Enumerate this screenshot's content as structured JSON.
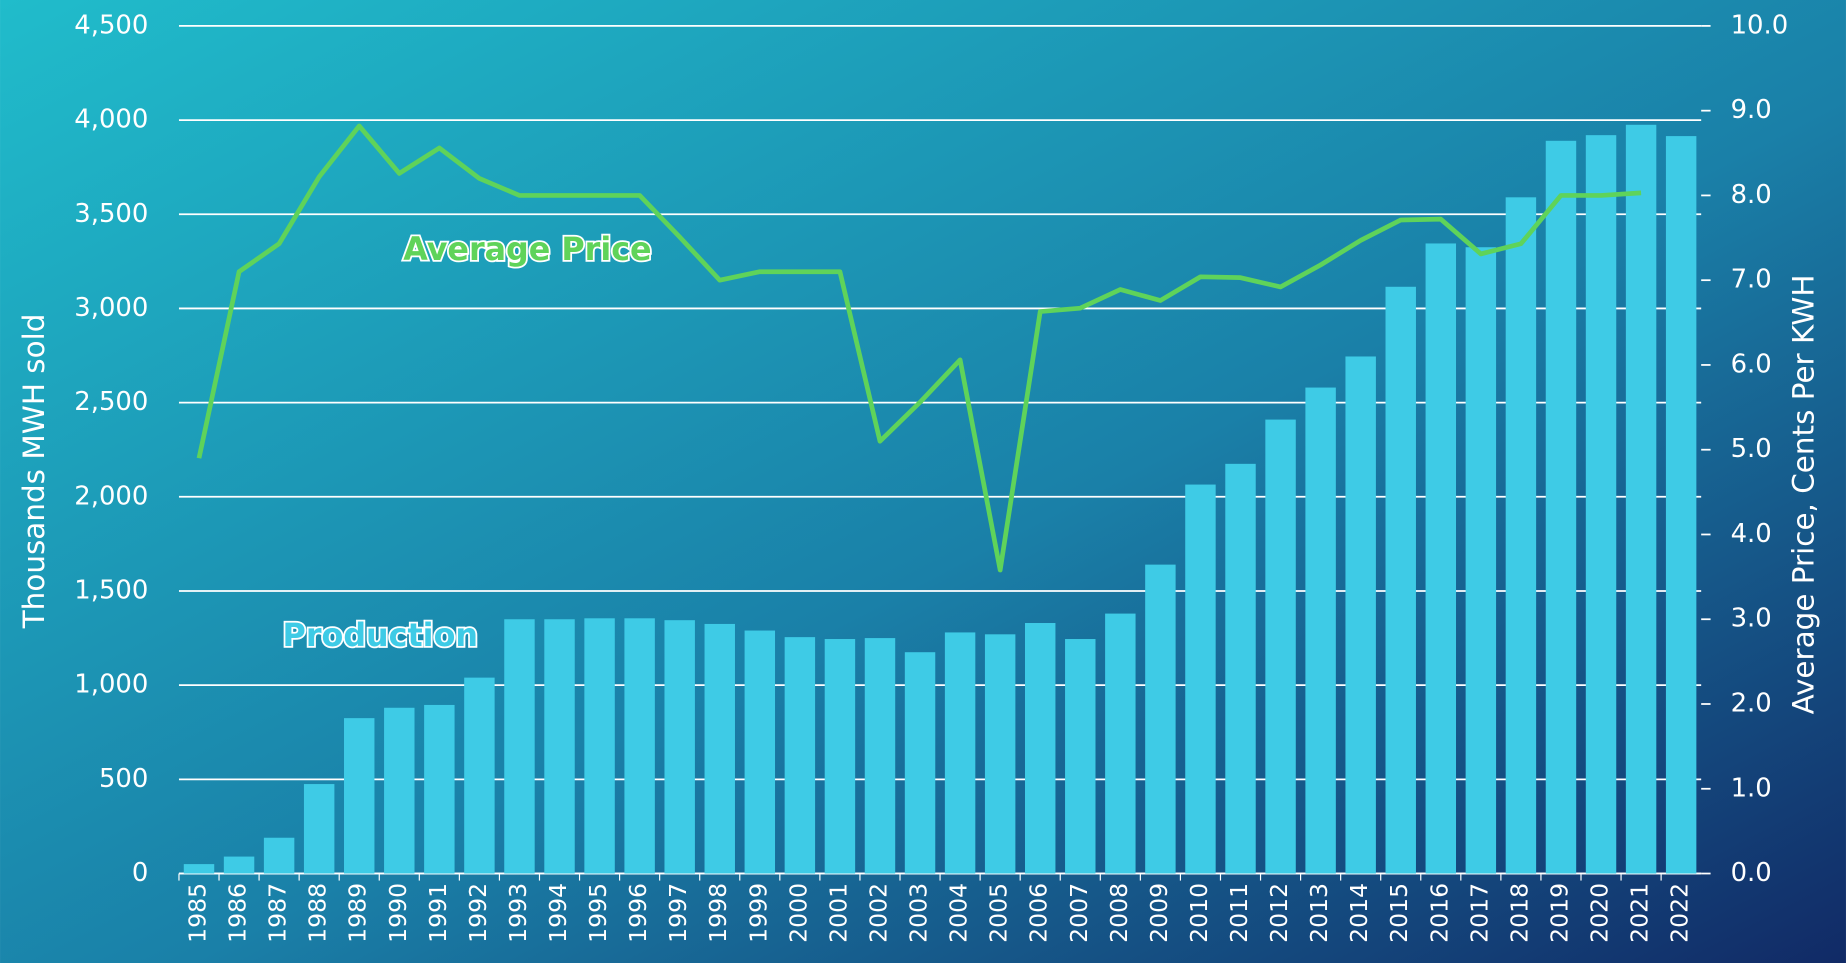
{
  "chart_data": {
    "type": "bar_line",
    "y_label": "Thousands MWH sold",
    "y2_label": "Average Price, Cents Per KWH",
    "annotations": [
      "Average Price",
      "Production"
    ],
    "categories": [
      "1985",
      "1986",
      "1987",
      "1988",
      "1989",
      "1990",
      "1991",
      "1992",
      "1993",
      "1994",
      "1995",
      "1996",
      "1997",
      "1998",
      "1999",
      "2000",
      "2001",
      "2002",
      "2003",
      "2004",
      "2005",
      "2006",
      "2007",
      "2008",
      "2009",
      "2010",
      "2011",
      "2012",
      "2013",
      "2014",
      "2015",
      "2016",
      "2017",
      "2018",
      "2019",
      "2020",
      "2021",
      "2022"
    ],
    "series": [
      {
        "name": "Production",
        "type": "bar",
        "color": "#3ecbe6",
        "values": [
          50,
          90,
          190,
          475,
          825,
          880,
          895,
          1040,
          1350,
          1350,
          1355,
          1355,
          1345,
          1325,
          1290,
          1255,
          1245,
          1250,
          1175,
          1280,
          1270,
          1330,
          1245,
          1380,
          1640,
          2065,
          2175,
          2410,
          2580,
          2745,
          3115,
          3345,
          3325,
          3590,
          3890,
          3920,
          3975,
          3915
        ]
      },
      {
        "name": "Average Price",
        "type": "line",
        "axis": "y2",
        "color": "#5fd35a",
        "values": [
          4.9,
          7.1,
          7.43,
          8.22,
          8.82,
          8.26,
          8.56,
          8.2,
          8.0,
          8.0,
          8.0,
          8.0,
          7.51,
          7.0,
          7.1,
          7.1,
          7.1,
          5.1,
          5.56,
          6.06,
          3.58,
          6.63,
          6.67,
          6.89,
          6.76,
          7.04,
          7.03,
          6.92,
          7.18,
          7.47,
          7.71,
          7.72,
          7.31,
          7.43,
          8.0,
          8.0,
          8.03,
          null
        ]
      }
    ],
    "ylim": [
      0,
      4500
    ],
    "yticks": [
      0,
      500,
      {
        "value": 1000,
        "label": "1,000"
      },
      {
        "value": 1500,
        "label": "1,500"
      },
      {
        "value": 2000,
        "label": "2,000"
      },
      {
        "value": 2500,
        "label": "2,500"
      },
      {
        "value": 3000,
        "label": "3,000"
      },
      {
        "value": 3500,
        "label": "3,500"
      },
      {
        "value": 4000,
        "label": "4,000"
      },
      {
        "value": 4500,
        "label": "4,500"
      }
    ],
    "y2lim": [
      0,
      10
    ],
    "y2ticks": [
      {
        "value": 0,
        "label": "0.0"
      },
      {
        "value": 1,
        "label": "1.0"
      },
      {
        "value": 2,
        "label": "2.0"
      },
      {
        "value": 3,
        "label": "3.0"
      },
      {
        "value": 4,
        "label": "4.0"
      },
      {
        "value": 5,
        "label": "5.0"
      },
      {
        "value": 6,
        "label": "6.0"
      },
      {
        "value": 7,
        "label": "7.0"
      },
      {
        "value": 8,
        "label": "8.0"
      },
      {
        "value": 9,
        "label": "9.0"
      },
      {
        "value": 10,
        "label": "10.0"
      }
    ],
    "grid": true
  }
}
